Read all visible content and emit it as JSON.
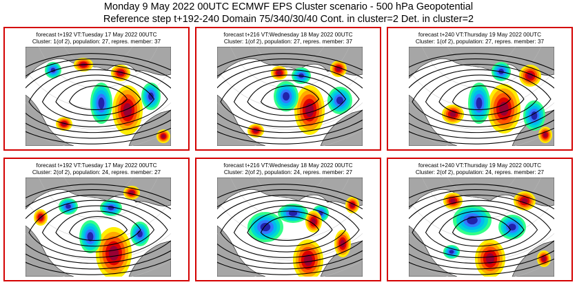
{
  "header": {
    "title": "Monday 9 May 2022 00UTC ECMWF EPS Cluster scenario - 500 hPa Geopotential",
    "subtitle": "Reference step t+192-240 Domain 75/340/30/40 Cont. in cluster=2 Det. in cluster=2"
  },
  "panels": [
    {
      "line1": "forecast t+192 VT:Tuesday 17 May 2022 00UTC",
      "line2": "Cluster: 1(of 2), population: 27, repres. member: 37"
    },
    {
      "line1": "forecast t+216 VT:Wednesday 18 May 2022 00UTC",
      "line2": "Cluster: 1(of 2), population: 27, repres. member: 37"
    },
    {
      "line1": "forecast t+240 VT:Thursday 19 May 2022 00UTC",
      "line2": "Cluster: 1(of 2), population: 27, repres. member: 37"
    },
    {
      "line1": "forecast t+192 VT:Tuesday 17 May 2022 00UTC",
      "line2": "Cluster: 2(of 2), population: 24, repres. member: 27"
    },
    {
      "line1": "forecast t+216 VT:Wednesday 18 May 2022 00UTC",
      "line2": "Cluster: 2(of 2), population: 24, repres. member: 27"
    },
    {
      "line1": "forecast t+240 VT:Thursday 19 May 2022 00UTC",
      "line2": "Cluster: 2(of 2), population: 24, repres. member: 27"
    }
  ],
  "colors": {
    "frame": "#d40000",
    "land": "#a6a6a6",
    "sea": "#ffffff",
    "anomaly_positive": [
      "#ffee00",
      "#ffaa00",
      "#ff5500",
      "#dd0000",
      "#990033"
    ],
    "anomaly_negative": [
      "#33ff88",
      "#00ddcc",
      "#00bbee",
      "#3377ff",
      "#2222aa"
    ]
  }
}
